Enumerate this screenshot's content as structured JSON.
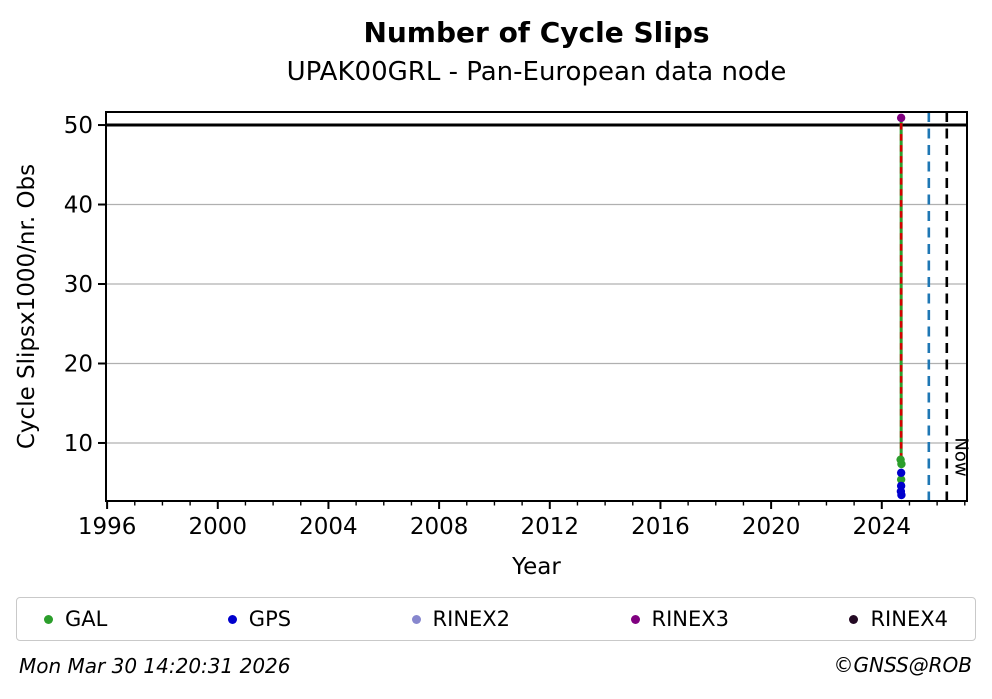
{
  "header": {
    "title": "Number of Cycle Slips",
    "subtitle": "UPAK00GRL - Pan-European data node"
  },
  "footer": {
    "timestamp": "Mon Mar 30 14:20:31 2026",
    "copyright": "©GNSS@ROB"
  },
  "legend": {
    "entries": [
      {
        "label": "GAL",
        "color": "#2b9e2b"
      },
      {
        "label": "GPS",
        "color": "#0000cd"
      },
      {
        "label": "RINEX2",
        "color": "#8787ce"
      },
      {
        "label": "RINEX3",
        "color": "#800080"
      },
      {
        "label": "RINEX4",
        "color": "#240a24"
      }
    ]
  },
  "chart_data": {
    "type": "scatter",
    "title": "Number of Cycle Slips",
    "subtitle": "UPAK00GRL - Pan-European data node",
    "xlabel": "Year",
    "ylabel": "Cycle Slipsx1000/nr. Obs",
    "xlim": [
      1995.96,
      2027.08
    ],
    "ylim": [
      2.7,
      51.64
    ],
    "xticks_major": [
      1996,
      2000,
      2004,
      2008,
      2012,
      2016,
      2020,
      2024
    ],
    "xtick_minor_step": 1,
    "yticks": [
      10,
      20,
      30,
      40,
      50
    ],
    "grid": {
      "color": "#b0b0b0",
      "gridline_yticks": [
        10,
        20,
        30,
        40
      ]
    },
    "cap_line": {
      "y": 50,
      "color": "#000000",
      "width": 3
    },
    "series": [
      {
        "name": "GAL",
        "color": "#2b9e2b",
        "points": [
          [
            2024.68,
            7.9
          ],
          [
            2024.71,
            7.35
          ],
          [
            2024.7,
            5.4
          ]
        ]
      },
      {
        "name": "GPS",
        "color": "#0000cd",
        "points": [
          [
            2024.7,
            6.25
          ],
          [
            2024.7,
            4.6
          ],
          [
            2024.69,
            3.9
          ],
          [
            2024.71,
            3.45
          ]
        ]
      },
      {
        "name": "RINEX2",
        "color": "#8787ce",
        "points": []
      },
      {
        "name": "RINEX3",
        "color": "#800080",
        "points": [
          [
            2024.7,
            50.9
          ]
        ]
      },
      {
        "name": "RINEX4",
        "color": "#240a24",
        "points": []
      }
    ],
    "lines": [
      {
        "series": "GAL",
        "x": 2024.7,
        "y_from": 7.35,
        "y_to": 50.9,
        "style": "solid",
        "color": "#2b9e2b",
        "width": 3
      },
      {
        "series": "RINEX3",
        "x": 2024.7,
        "y_from": 7.9,
        "y_to": 51.2,
        "style": "dashed",
        "color": "#d40000",
        "width": 2.6
      }
    ],
    "vlines": [
      {
        "x": 2025.7,
        "color": "#1f77b4",
        "style": "dashed",
        "label": ""
      },
      {
        "x": 2026.35,
        "color": "#000000",
        "style": "dashed",
        "label": "Now"
      }
    ],
    "legend_position": "bottom"
  }
}
